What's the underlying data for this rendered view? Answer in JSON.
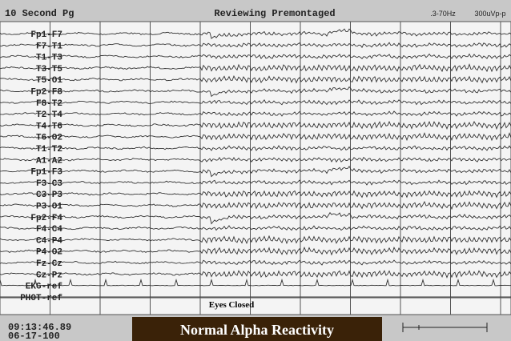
{
  "header": {
    "page": "10 Second Pg",
    "mode": "Reviewing Premontaged",
    "filter": ".3-70Hz",
    "sensitivity": "300uVp-p"
  },
  "channels": [
    "Fp1-F7",
    "F7-T1",
    "T1-T3",
    "T3-T5",
    "T5-O1",
    "Fp2-F8",
    "F8-T2",
    "T2-T4",
    "T4-T6",
    "T6-O2",
    "T1-T2",
    "A1-A2",
    "Fp1-F3",
    "F3-C3",
    "C3-P3",
    "P3-O1",
    "Fp2-F4",
    "F4-C4",
    "C4-P4",
    "P4-O2",
    "Fz-Cz",
    "Cz-Pz",
    "EKG-ref",
    "PHOT-ref"
  ],
  "annotation": "Eyes Closed",
  "footer": {
    "time": "09:13:46.89",
    "date": "06-17-100",
    "title": "Normal Alpha Reactivity"
  }
}
